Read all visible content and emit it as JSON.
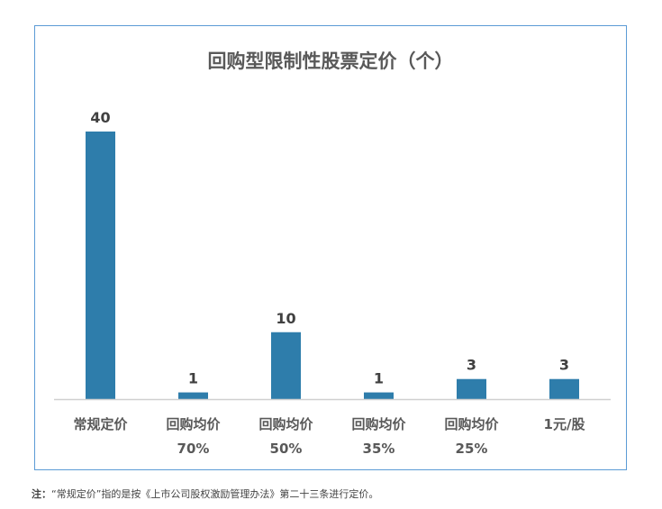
{
  "chart_data": {
    "type": "bar",
    "title": "回购型限制性股票定价（个）",
    "categories": [
      [
        "常规定价"
      ],
      [
        "回购均价",
        "70%"
      ],
      [
        "回购均价",
        "50%"
      ],
      [
        "回购均价",
        "35%"
      ],
      [
        "回购均价",
        "25%"
      ],
      [
        "1元/股"
      ]
    ],
    "values": [
      40,
      1,
      10,
      1,
      3,
      3
    ],
    "xlabel": "",
    "ylabel": "",
    "ylim": [
      0,
      40
    ],
    "grid": false,
    "bar_color": "#2e7dab"
  },
  "note": {
    "label": "注：",
    "text": "“常规定价”指的是按《上市公司股权激励管理办法》第二十三条进行定价。"
  }
}
